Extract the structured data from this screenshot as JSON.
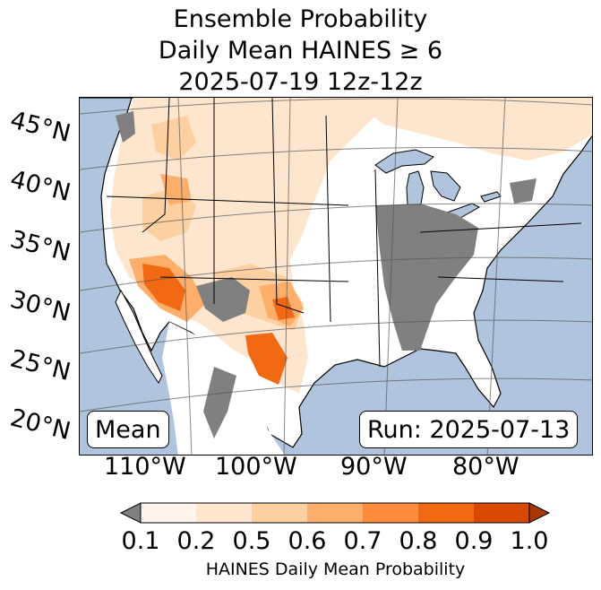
{
  "title": {
    "line1": "Ensemble Probability",
    "line2": "Daily Mean HAINES ≥ 6",
    "line3": "2025-07-19 12z-12z"
  },
  "map": {
    "latitude_labels": [
      "45°N",
      "40°N",
      "35°N",
      "30°N",
      "25°N",
      "20°N"
    ],
    "longitude_labels": [
      "110°W",
      "100°W",
      "90°W",
      "80°W"
    ],
    "stat_label": "Mean",
    "run_label": "Run: 2025-07-13",
    "colors": {
      "ocean": "#b0c4de",
      "below_range": "#808080",
      "land_zero": "#ffffff"
    }
  },
  "colorbar": {
    "ticks": [
      "0.1",
      "0.2",
      "0.5",
      "0.6",
      "0.7",
      "0.8",
      "0.9",
      "1.0"
    ],
    "colors": [
      "#fff5eb",
      "#fee6ce",
      "#fdd0a2",
      "#fdae6b",
      "#fd8d3c",
      "#f16913",
      "#d94801"
    ],
    "under_color": "#808080",
    "over_color": "#a63603",
    "label": "HAINES Daily Mean Probability"
  }
}
